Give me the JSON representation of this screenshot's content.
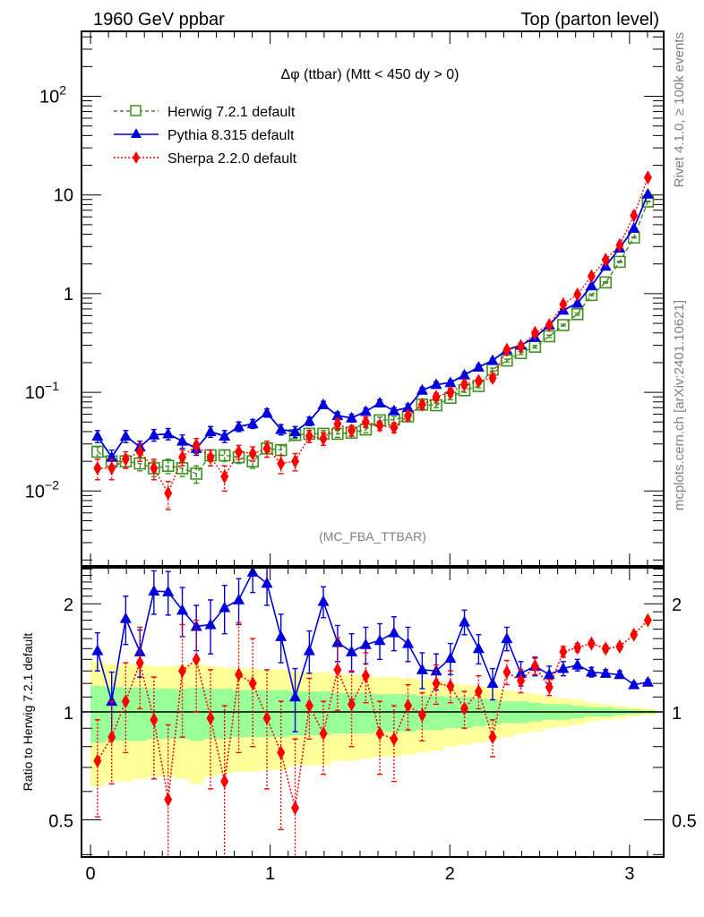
{
  "header": {
    "left": "1960 GeV ppbar",
    "right": "Top (parton level)"
  },
  "side_labels": {
    "upper": "Rivet 4.1.0, ≥ 100k events",
    "lower": "mcplots.cern.ch [arXiv:2401.10621]"
  },
  "chart_data": [
    {
      "type": "line",
      "panel": "main",
      "title": "Δφ (ttbar) (Mtt < 450 dy > 0)",
      "watermark": "(MC_FBA_TTBAR)",
      "xlabel": "",
      "ylabel": "",
      "yscale": "log",
      "xlim": [
        -0.05,
        3.19
      ],
      "ylim": [
        0.00174,
        455
      ],
      "y_ticks": [
        {
          "v": 100,
          "label": "10^2"
        },
        {
          "v": 10,
          "label": "10"
        },
        {
          "v": 1,
          "label": "1"
        },
        {
          "v": 0.1,
          "label": "10^-1"
        },
        {
          "v": 0.01,
          "label": "10^-2"
        }
      ],
      "x_ticks": [
        0,
        1,
        2,
        3
      ],
      "legend_position": "top-left",
      "x": [
        0.039,
        0.118,
        0.196,
        0.275,
        0.353,
        0.432,
        0.511,
        0.589,
        0.668,
        0.746,
        0.825,
        0.903,
        0.982,
        1.06,
        1.139,
        1.218,
        1.296,
        1.375,
        1.453,
        1.532,
        1.61,
        1.689,
        1.767,
        1.846,
        1.924,
        2.003,
        2.081,
        2.16,
        2.238,
        2.317,
        2.395,
        2.474,
        2.553,
        2.631,
        2.71,
        2.788,
        2.867,
        2.945,
        3.024,
        3.102
      ],
      "series": [
        {
          "name": "Herwig 7.2.1 default",
          "color": "#3f8f1f",
          "marker": "open-square",
          "line": "dashed",
          "values": [
            0.025,
            0.02,
            0.02,
            0.019,
            0.017,
            0.018,
            0.017,
            0.015,
            0.023,
            0.023,
            0.022,
            0.02,
            0.027,
            0.026,
            0.037,
            0.038,
            0.038,
            0.038,
            0.039,
            0.042,
            0.052,
            0.053,
            0.057,
            0.075,
            0.074,
            0.088,
            0.105,
            0.116,
            0.17,
            0.21,
            0.25,
            0.29,
            0.37,
            0.48,
            0.62,
            0.97,
            1.3,
            2.1,
            3.7,
            8.6
          ],
          "errors": [
            0.003,
            0.003,
            0.003,
            0.003,
            0.003,
            0.003,
            0.003,
            0.003,
            0.003,
            0.003,
            0.003,
            0.003,
            0.003,
            0.003,
            0.003,
            0.003,
            0.003,
            0.003,
            0.003,
            0.003,
            0.004,
            0.004,
            0.004,
            0.004,
            0.004,
            0.004,
            0.005,
            0.005,
            0.006,
            0.007,
            0.008,
            0.009,
            0.01,
            0.01,
            0.015,
            0.02,
            0.02,
            0.03,
            0.04,
            0.07
          ]
        },
        {
          "name": "Pythia 8.315 default",
          "color": "#0000dd",
          "marker": "filled-triangle",
          "line": "solid",
          "values": [
            0.036,
            0.022,
            0.036,
            0.028,
            0.037,
            0.038,
            0.032,
            0.027,
            0.04,
            0.036,
            0.045,
            0.048,
            0.062,
            0.042,
            0.04,
            0.051,
            0.075,
            0.058,
            0.055,
            0.064,
            0.078,
            0.065,
            0.07,
            0.105,
            0.12,
            0.125,
            0.15,
            0.18,
            0.21,
            0.27,
            0.3,
            0.36,
            0.48,
            0.68,
            0.8,
            1.2,
            1.9,
            2.9,
            4.6,
            10.2
          ],
          "errors": [
            0.005,
            0.004,
            0.005,
            0.004,
            0.005,
            0.005,
            0.005,
            0.004,
            0.005,
            0.005,
            0.005,
            0.005,
            0.006,
            0.005,
            0.005,
            0.005,
            0.006,
            0.005,
            0.005,
            0.005,
            0.006,
            0.005,
            0.006,
            0.007,
            0.008,
            0.008,
            0.009,
            0.01,
            0.01,
            0.012,
            0.013,
            0.015,
            0.02,
            0.02,
            0.03,
            0.04,
            0.05,
            0.06,
            0.08,
            0.12
          ]
        },
        {
          "name": "Sherpa 2.2.0 default",
          "color": "#ff0000",
          "marker": "filled-diamond",
          "line": "dotted",
          "values": [
            0.017,
            0.017,
            0.021,
            0.025,
            0.017,
            0.0095,
            0.022,
            0.029,
            0.022,
            0.014,
            0.025,
            0.024,
            0.027,
            0.019,
            0.02,
            0.036,
            0.034,
            0.048,
            0.041,
            0.05,
            0.046,
            0.044,
            0.058,
            0.075,
            0.09,
            0.1,
            0.12,
            0.13,
            0.14,
            0.27,
            0.29,
            0.4,
            0.48,
            0.78,
            0.98,
            1.5,
            2.2,
            3.1,
            6.2,
            15.0
          ],
          "errors": [
            0.004,
            0.004,
            0.004,
            0.005,
            0.004,
            0.003,
            0.004,
            0.005,
            0.004,
            0.004,
            0.004,
            0.004,
            0.005,
            0.004,
            0.004,
            0.005,
            0.005,
            0.006,
            0.005,
            0.006,
            0.005,
            0.005,
            0.006,
            0.007,
            0.008,
            0.009,
            0.01,
            0.01,
            0.011,
            0.015,
            0.016,
            0.02,
            0.02,
            0.03,
            0.04,
            0.05,
            0.06,
            0.08,
            0.12,
            0.2
          ]
        }
      ]
    },
    {
      "type": "line",
      "panel": "ratio",
      "ylabel": "Ratio to Herwig 7.2.1 default",
      "yscale": "log",
      "xlim": [
        -0.05,
        3.19
      ],
      "ylim": [
        0.394,
        2.52
      ],
      "y_ticks": [
        {
          "v": 2,
          "label": "2"
        },
        {
          "v": 1,
          "label": "1"
        },
        {
          "v": 0.5,
          "label": "0.5"
        }
      ],
      "x_ticks": [
        0,
        1,
        2,
        3
      ],
      "reference": 1,
      "bands": [
        {
          "name": "MC stat (1 sigma)",
          "color": "#99ff99",
          "halfwidth": [
            0.18,
            0.17,
            0.17,
            0.17,
            0.16,
            0.16,
            0.16,
            0.17,
            0.16,
            0.16,
            0.15,
            0.15,
            0.15,
            0.15,
            0.14,
            0.14,
            0.14,
            0.13,
            0.13,
            0.13,
            0.12,
            0.12,
            0.12,
            0.11,
            0.11,
            0.1,
            0.1,
            0.09,
            0.08,
            0.07,
            0.07,
            0.06,
            0.05,
            0.05,
            0.04,
            0.03,
            0.03,
            0.02,
            0.015,
            0.01
          ]
        },
        {
          "name": "MC stat (2 sigma)",
          "color": "#ffff99",
          "halfwidth": [
            0.38,
            0.36,
            0.36,
            0.35,
            0.34,
            0.34,
            0.35,
            0.37,
            0.34,
            0.33,
            0.32,
            0.32,
            0.31,
            0.31,
            0.29,
            0.29,
            0.29,
            0.27,
            0.27,
            0.26,
            0.25,
            0.25,
            0.24,
            0.23,
            0.22,
            0.2,
            0.19,
            0.18,
            0.16,
            0.15,
            0.13,
            0.12,
            0.1,
            0.09,
            0.08,
            0.06,
            0.05,
            0.04,
            0.03,
            0.02
          ]
        }
      ],
      "series": [
        {
          "name": "Pythia 8.315 default",
          "color": "#0000dd",
          "values": [
            1.48,
            1.07,
            1.82,
            1.47,
            2.17,
            2.16,
            1.92,
            1.73,
            1.75,
            1.95,
            2.05,
            2.45,
            2.28,
            1.62,
            1.1,
            1.48,
            2.03,
            1.56,
            1.47,
            1.54,
            1.58,
            1.66,
            1.55,
            1.31,
            1.3,
            1.41,
            1.78,
            1.5,
            1.2,
            1.6,
            1.28,
            1.34,
            1.27,
            1.32,
            1.35,
            1.29,
            1.28,
            1.27,
            1.19,
            1.21
          ],
          "errors": [
            0.18,
            0.22,
            0.28,
            0.22,
            0.3,
            0.3,
            0.3,
            0.25,
            0.3,
            0.3,
            0.3,
            0.3,
            0.3,
            0.25,
            0.22,
            0.2,
            0.2,
            0.18,
            0.18,
            0.18,
            0.18,
            0.18,
            0.17,
            0.15,
            0.15,
            0.14,
            0.14,
            0.14,
            0.12,
            0.12,
            0.1,
            0.08,
            0.07,
            0.06,
            0.05,
            0.04,
            0.03,
            0.03,
            0.02,
            0.02
          ]
        },
        {
          "name": "Sherpa 2.2.0 default",
          "color": "#ff0000",
          "values": [
            0.73,
            0.85,
            1.07,
            1.37,
            0.95,
            0.57,
            1.3,
            1.4,
            0.96,
            0.64,
            1.27,
            1.2,
            0.96,
            0.77,
            0.54,
            1.04,
            0.87,
            1.31,
            1.05,
            1.26,
            0.87,
            0.84,
            1.04,
            0.98,
            1.2,
            1.18,
            1.02,
            1.14,
            0.85,
            1.29,
            1.22,
            1.34,
            1.17,
            1.47,
            1.51,
            1.55,
            1.5,
            1.52,
            1.64,
            1.8
          ],
          "errors": [
            0.22,
            0.22,
            0.3,
            0.35,
            0.3,
            0.35,
            0.45,
            0.4,
            0.35,
            0.4,
            0.5,
            0.4,
            0.35,
            0.3,
            0.3,
            0.2,
            0.2,
            0.3,
            0.25,
            0.2,
            0.2,
            0.2,
            0.15,
            0.15,
            0.15,
            0.12,
            0.12,
            0.12,
            0.1,
            0.1,
            0.09,
            0.07,
            0.06,
            0.05,
            0.04,
            0.03,
            0.03,
            0.03,
            0.02,
            0.02
          ]
        }
      ]
    }
  ]
}
